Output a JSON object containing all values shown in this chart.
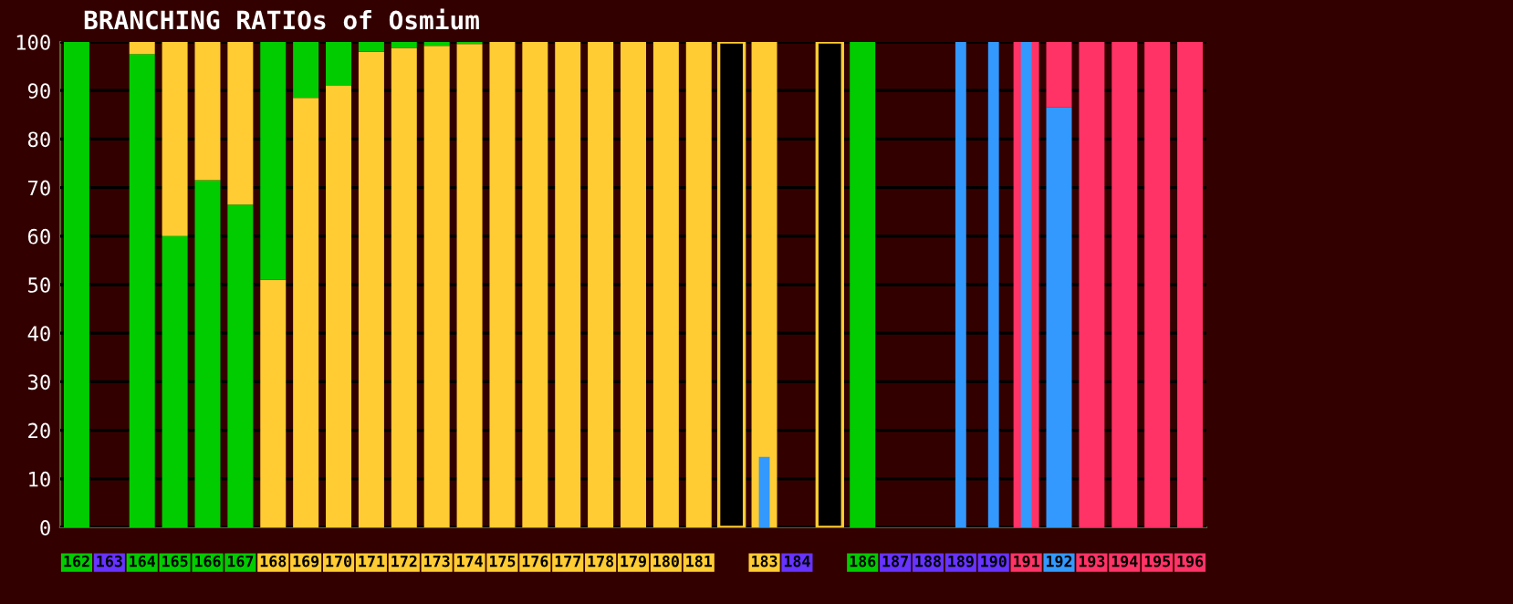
{
  "chart_data": [
    {
      "type": "bar",
      "title": "BRANCHING RATIOs of Osmium",
      "stacked": true,
      "categories": [
        "162",
        "163",
        "164",
        "165",
        "166",
        "167",
        "168",
        "169",
        "170",
        "171",
        "172",
        "173",
        "174",
        "175",
        "176",
        "177",
        "178",
        "179",
        "180",
        "181",
        null,
        "183",
        "184",
        null,
        "186",
        "187",
        "188",
        "189",
        "190",
        "191",
        "192",
        "193",
        "194",
        "195",
        "196"
      ],
      "series": [
        {
          "color": "#00cc00",
          "values": [
            100,
            null,
            97.5,
            60,
            71.5,
            66.5,
            null,
            null,
            null,
            null,
            null,
            null,
            null,
            null,
            null,
            null,
            null,
            null,
            null,
            null,
            null,
            null,
            null,
            null,
            100,
            null,
            null,
            null,
            null,
            null,
            null,
            null,
            null,
            null,
            null
          ]
        },
        {
          "color": "#ffcc33",
          "values": [
            null,
            null,
            2.5,
            40,
            28.5,
            33.5,
            51,
            88.5,
            91,
            98,
            98.8,
            99.2,
            99.6,
            100,
            100,
            100,
            100,
            100,
            100,
            100,
            null,
            100,
            null,
            null,
            null,
            null,
            null,
            null,
            null,
            null,
            null,
            null,
            null,
            null,
            null
          ]
        },
        {
          "color": "#00cc00",
          "values": [
            null,
            null,
            null,
            null,
            null,
            null,
            49,
            11.5,
            9,
            2,
            1.2,
            0.8,
            0.4,
            null,
            null,
            null,
            null,
            null,
            null,
            null,
            null,
            null,
            null,
            null,
            null,
            null,
            null,
            null,
            null,
            null,
            null,
            null,
            null,
            null,
            null
          ]
        },
        {
          "color": "#000000",
          "values": [
            null,
            null,
            null,
            null,
            null,
            null,
            null,
            null,
            null,
            null,
            null,
            null,
            null,
            null,
            null,
            null,
            null,
            null,
            null,
            null,
            100,
            null,
            null,
            100,
            null,
            null,
            null,
            null,
            null,
            null,
            null,
            null,
            null,
            null,
            null
          ]
        },
        {
          "color": "#3399ff",
          "values": [
            null,
            null,
            null,
            null,
            null,
            null,
            null,
            null,
            null,
            null,
            null,
            null,
            null,
            null,
            null,
            null,
            null,
            null,
            null,
            null,
            null,
            null,
            null,
            null,
            null,
            null,
            null,
            null,
            null,
            null,
            86.5,
            null,
            null,
            null,
            null
          ]
        },
        {
          "color": "#ff3366",
          "values": [
            null,
            null,
            null,
            null,
            null,
            null,
            null,
            null,
            null,
            null,
            null,
            null,
            null,
            null,
            null,
            null,
            null,
            null,
            null,
            null,
            null,
            null,
            null,
            null,
            null,
            null,
            null,
            null,
            null,
            100,
            13.5,
            100,
            100,
            100,
            100
          ]
        }
      ],
      "ylim": [
        0,
        100
      ],
      "yticks": [
        0,
        10,
        20,
        30,
        40,
        50,
        60,
        70,
        80,
        90,
        100
      ],
      "grid": "y"
    },
    {
      "type": "bar",
      "categories": [
        "162",
        "163",
        "164",
        "165",
        "166",
        "167",
        "168",
        "169",
        "170",
        "171",
        "172",
        "173",
        "174",
        "175",
        "176",
        "177",
        "178",
        "179",
        "180",
        "181",
        null,
        "183",
        "184",
        null,
        "186",
        "187",
        "188",
        "189",
        "190",
        "191",
        "192",
        "193",
        "194",
        "195",
        "196"
      ],
      "series": [
        {
          "color": "#3399ff",
          "values": [
            null,
            null,
            null,
            null,
            null,
            null,
            null,
            null,
            null,
            null,
            null,
            null,
            null,
            null,
            null,
            null,
            null,
            null,
            null,
            null,
            null,
            14.5,
            null,
            null,
            null,
            null,
            null,
            100,
            100,
            100,
            null,
            null,
            null,
            null,
            null
          ]
        }
      ],
      "ylim": [
        0,
        100
      ],
      "tick_labels": false
    }
  ]
}
